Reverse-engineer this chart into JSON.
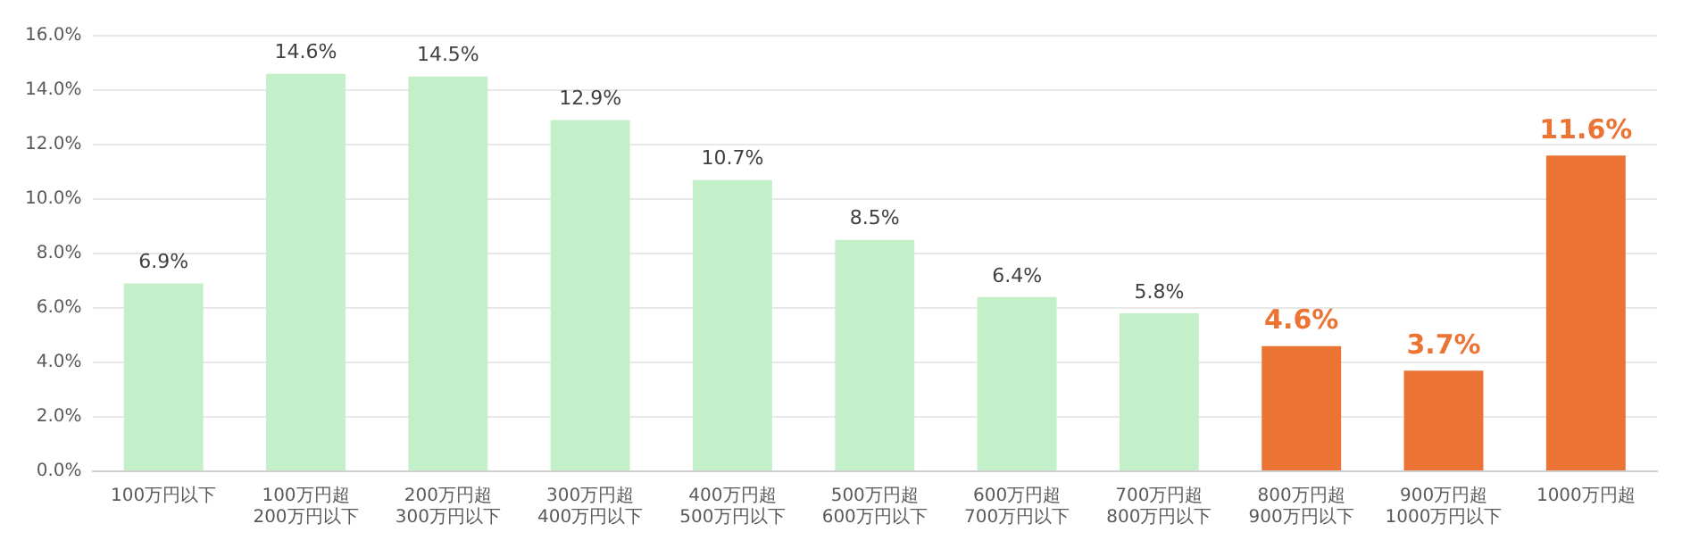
{
  "chart_data": {
    "type": "bar",
    "categories": [
      "100万円以下",
      "100万円超\n200万円以下",
      "200万円超\n300万円以下",
      "300万円超\n400万円以下",
      "400万円超\n500万円以下",
      "500万円超\n600万円以下",
      "600万円超\n700万円以下",
      "700万円超\n800万円以下",
      "800万円超\n900万円以下",
      "900万円超\n1000万円以下",
      "1000万円超"
    ],
    "values": [
      6.9,
      14.6,
      14.5,
      12.9,
      10.7,
      8.5,
      6.4,
      5.8,
      4.6,
      3.7,
      11.6
    ],
    "value_labels": [
      "6.9%",
      "14.6%",
      "14.5%",
      "12.9%",
      "10.7%",
      "8.5%",
      "6.4%",
      "5.8%",
      "4.6%",
      "3.7%",
      "11.6%"
    ],
    "colors": [
      "#c3f0c8",
      "#c3f0c8",
      "#c3f0c8",
      "#c3f0c8",
      "#c3f0c8",
      "#c3f0c8",
      "#c3f0c8",
      "#c3f0c8",
      "#eb7333",
      "#eb7333",
      "#eb7333"
    ],
    "ylim": [
      0,
      16
    ],
    "yticks": [
      {
        "value": 0,
        "label": "0.0%"
      },
      {
        "value": 2,
        "label": "2.0%"
      },
      {
        "value": 4,
        "label": "4.0%"
      },
      {
        "value": 6,
        "label": "6.0%"
      },
      {
        "value": 8,
        "label": "8.0%"
      },
      {
        "value": 10,
        "label": "10.0%"
      },
      {
        "value": 12,
        "label": "12.0%"
      },
      {
        "value": 14,
        "label": "14.0%"
      },
      {
        "value": 16,
        "label": "16.0%"
      }
    ],
    "grid": "y",
    "legend": false
  }
}
